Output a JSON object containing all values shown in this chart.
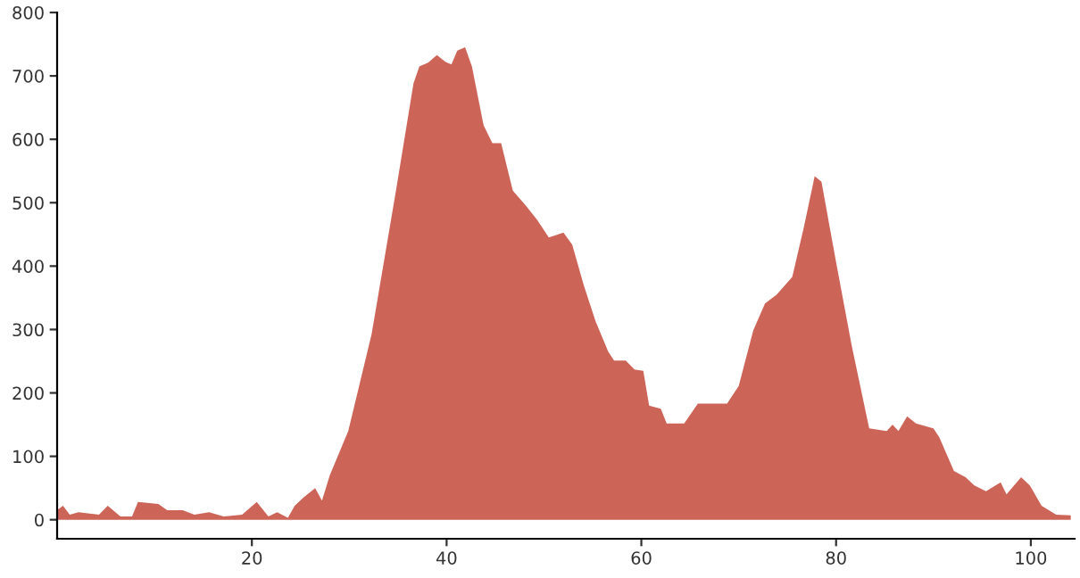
{
  "chart_data": {
    "type": "area",
    "color": "#cd6458",
    "x": [
      0,
      0.6,
      1.3,
      2.2,
      4.3,
      5.2,
      6.5,
      7.7,
      8.3,
      10.4,
      11.3,
      12.9,
      14.1,
      15.6,
      17.1,
      19,
      20.5,
      21.7,
      22.6,
      23.7,
      24.4,
      25.3,
      26.5,
      27.2,
      28,
      29.9,
      32.3,
      34.8,
      36.6,
      37.2,
      38.1,
      39,
      39.9,
      40.5,
      41.1,
      41.9,
      42.6,
      43.8,
      44.7,
      45.6,
      46.8,
      48.1,
      49.3,
      50.5,
      52,
      52.9,
      54.1,
      55.3,
      56.6,
      57.2,
      58.4,
      59.3,
      60.2,
      60.8,
      62,
      62.6,
      64.4,
      65.8,
      68.8,
      70,
      71.5,
      72.7,
      73.9,
      75.5,
      76.7,
      77.8,
      78.5,
      80,
      81.6,
      83.4,
      85.2,
      85.8,
      86.4,
      87.3,
      88.2,
      90,
      90.6,
      92.1,
      93.3,
      94.2,
      95.4,
      96.9,
      97.5,
      99,
      99.9,
      101.1,
      102.6,
      104.1
    ],
    "values": [
      15,
      22,
      8,
      12,
      8,
      22,
      5,
      5,
      28,
      25,
      15,
      15,
      8,
      12,
      5,
      8,
      28,
      5,
      12,
      3,
      22,
      35,
      50,
      30,
      70,
      140,
      293,
      519,
      688,
      715,
      721,
      733,
      722,
      718,
      740,
      745,
      715,
      622,
      594,
      594,
      519,
      496,
      473,
      445,
      453,
      434,
      369,
      313,
      265,
      251,
      251,
      237,
      235,
      180,
      175,
      152,
      152,
      183,
      183,
      211,
      299,
      341,
      355,
      383,
      462,
      542,
      533,
      406,
      275,
      144,
      140,
      150,
      140,
      163,
      152,
      144,
      130,
      77,
      67,
      54,
      45,
      59,
      40,
      67,
      54,
      22,
      8,
      7
    ],
    "xlim": [
      0,
      104.5
    ],
    "ylim": [
      -30,
      800
    ],
    "xticks": [
      20,
      40,
      60,
      80,
      100
    ],
    "yticks": [
      0,
      100,
      200,
      300,
      400,
      500,
      600,
      700,
      800
    ],
    "grid": false
  }
}
